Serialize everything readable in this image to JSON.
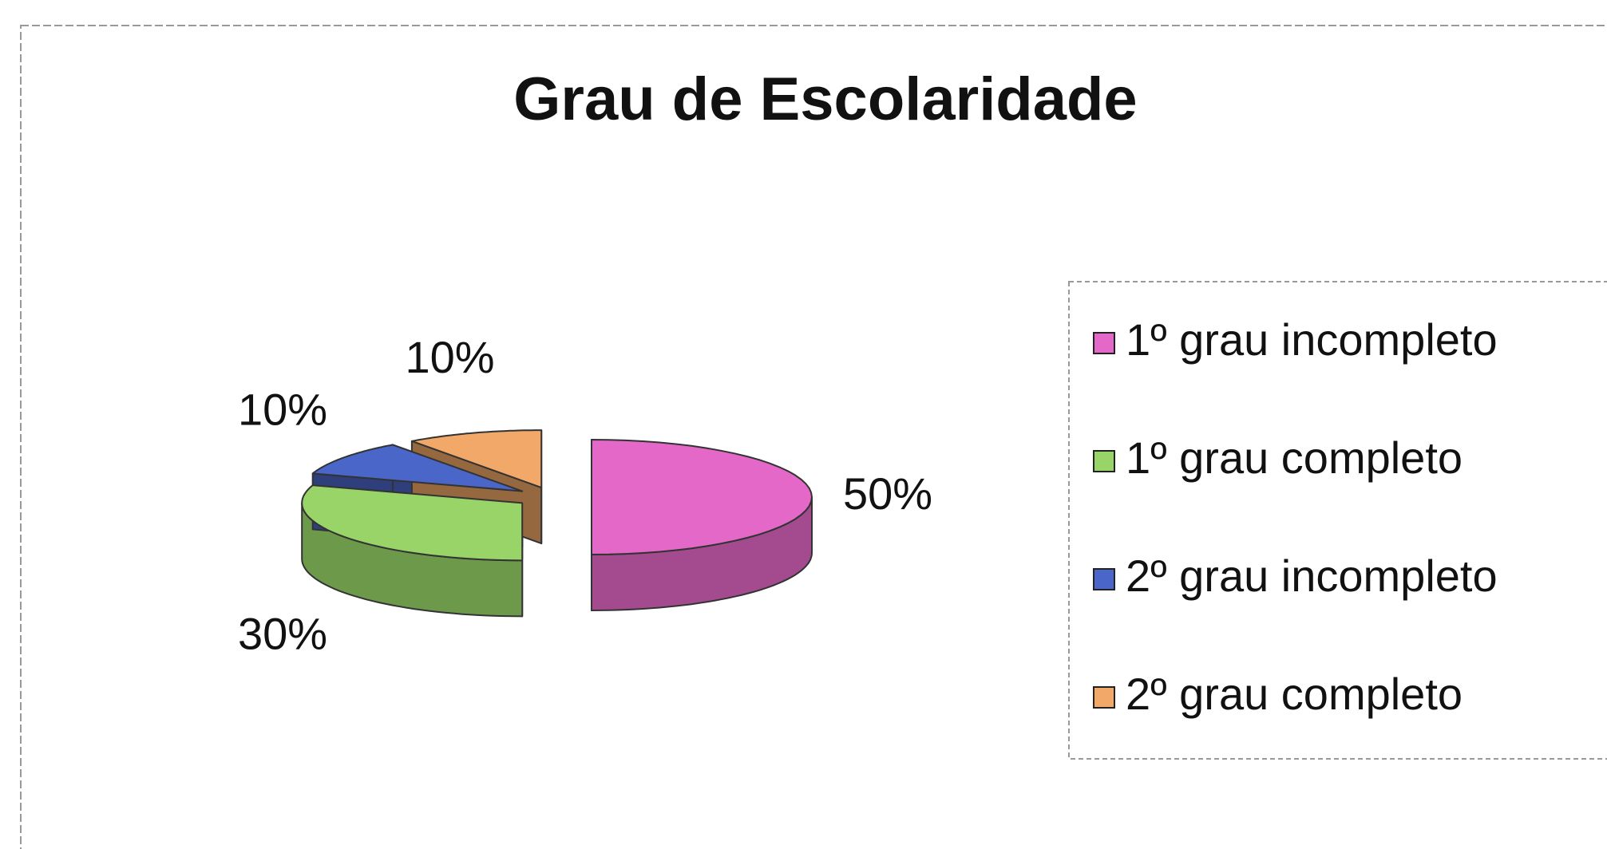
{
  "chart_data": {
    "type": "pie",
    "title": "Grau de Escolaridade",
    "categories": [
      "1º grau incompleto",
      "1º grau completo",
      "2º grau incompleto",
      "2º grau completo"
    ],
    "values": [
      50,
      30,
      10,
      10
    ],
    "value_labels": [
      "50%",
      "30%",
      "10%",
      "10%"
    ],
    "colors": [
      "#e468c8",
      "#98d468",
      "#4a66c8",
      "#f2a868"
    ],
    "legend": "right"
  }
}
